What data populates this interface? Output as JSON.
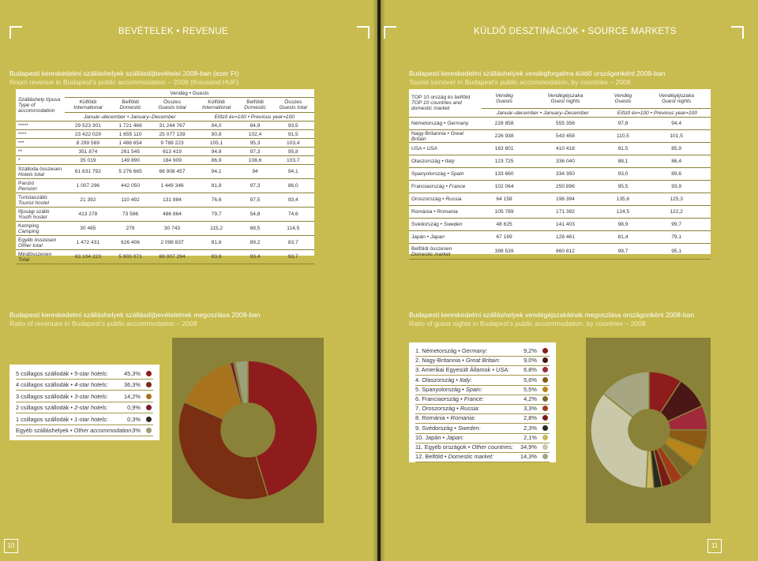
{
  "left": {
    "section_title": "BEVÉTELEK • REVENUE",
    "page_number": "10",
    "table1": {
      "caption_hu": "Budapesti kereskedelmi szálláshelyek szállásdíjbevételei 2008-ban (ezer Ft)",
      "caption_en": "Room revenue in Budapest's public accommodation – 2008 (thousand HUF)",
      "rowhead_hu": "Szálláshely típusa",
      "rowhead_en": "Type of accommodation",
      "group_label": "Vendég • Guests",
      "cols": [
        {
          "hu": "Külföldi",
          "en": "International"
        },
        {
          "hu": "Belföldi",
          "en": "Domestic"
        },
        {
          "hu": "Összes",
          "en": "Guests total"
        },
        {
          "hu": "Külföldi",
          "en": "International"
        },
        {
          "hu": "Belföldi",
          "en": "Domestic"
        },
        {
          "hu": "Összes",
          "en": "Guests total"
        }
      ],
      "period_left": "Január–december • January–December",
      "period_right": "Előző év=100 • Previous year=100",
      "rows": [
        {
          "hu": "*****",
          "en": "",
          "v": [
            "29 523 301",
            "1 721 466",
            "31 244 767",
            "94,0",
            "84,9",
            "93,5"
          ]
        },
        {
          "hu": "****",
          "en": "",
          "v": [
            "23 422 029",
            "1 655 110",
            "25 077 139",
            "90,8",
            "102,4",
            "91,5"
          ]
        },
        {
          "hu": "***",
          "en": "",
          "v": [
            "8 299 569",
            "1 488 654",
            "9 788 223",
            "105,1",
            "95,3",
            "103,4"
          ]
        },
        {
          "hu": "**",
          "en": "",
          "v": [
            "351 874",
            "261 545",
            "613 419",
            "94,8",
            "97,3",
            "95,8"
          ]
        },
        {
          "hu": "*",
          "en": "",
          "v": [
            "35 019",
            "149 890",
            "184 909",
            "86,9",
            "108,6",
            "103,7"
          ]
        },
        {
          "hu": "Szálloda összesen",
          "en": "Hotels total",
          "v": [
            "61 631 792",
            "5 276 665",
            "66 908 457",
            "94,1",
            "94",
            "94,1"
          ]
        },
        {
          "hu": "Panzió",
          "en": "Pension",
          "v": [
            "1 007 296",
            "442 050",
            "1 449 346",
            "81,8",
            "97,3",
            "86,0"
          ]
        },
        {
          "hu": "Turistaszálló",
          "en": "Tourist hostel",
          "v": [
            "21 392",
            "110 492",
            "131 884",
            "76,6",
            "97,5",
            "93,4"
          ]
        },
        {
          "hu": "Ifjúsági szálló",
          "en": "Youth hostel",
          "v": [
            "413 278",
            "73 586",
            "486 864",
            "79,7",
            "54,8",
            "74,6"
          ]
        },
        {
          "hu": "Kemping",
          "en": "Camping",
          "v": [
            "30 465",
            "278",
            "30 743",
            "115,2",
            "68,5",
            "114,5"
          ]
        },
        {
          "hu": "Egyéb összesen",
          "en": "Other total",
          "v": [
            "1 472 431",
            "626 406",
            "2 098 837",
            "81,6",
            "89,2",
            "83,7"
          ]
        },
        {
          "hu": "Mindösszesen",
          "en": "Total",
          "v": [
            "63 104 223",
            "5 903 071",
            "69 007 294",
            "93,8",
            "93,4",
            "93,7"
          ]
        }
      ]
    },
    "chart1": {
      "caption_hu": "Budapesti kereskedelmi szálláshelyek szállásdíjbevételeinek megoszlása 2008-ban",
      "caption_en": "Ratio of revenues in Budapest's public accommodation – 2008",
      "legend": [
        {
          "hu": "5 csillagos szállodák",
          "en": "5-star hotels:",
          "value": "45,3%",
          "color": "#8e1c1c"
        },
        {
          "hu": "4 csillagos szállodák",
          "en": "4-star hotels:",
          "value": "36,3%",
          "color": "#7a2e12"
        },
        {
          "hu": "3 csillagos szállodák",
          "en": "3-star hotels:",
          "value": "14,2%",
          "color": "#a8731c"
        },
        {
          "hu": "2 csillagos szállodák",
          "en": "2-star hotels:",
          "value": "0,9%",
          "color": "#7a1a32"
        },
        {
          "hu": "1 csillagos szállodák",
          "en": "1-star hotels:",
          "value": "0,3%",
          "color": "#2e2a20"
        },
        {
          "hu": "Egyéb szálláshelyek",
          "en": "Other accommodation:",
          "value": "3%",
          "color": "#9aa07a"
        }
      ]
    }
  },
  "right": {
    "section_title": "KÜLDŐ DESZTINÁCIÓK • SOURCE MARKETS",
    "page_number": "11",
    "table2": {
      "caption_hu": "Budapesti kereskedelmi szálláshelyek vendégforgalma küldő országonként 2008-ban",
      "caption_en": "Tourist turnover in Budapest's public accommodation, by countries – 2008",
      "rowhead_hu": "TOP 10 ország és belföld",
      "rowhead_en": "TOP 10 countries and domestic market",
      "cols": [
        {
          "hu": "Vendég",
          "en": "Guests"
        },
        {
          "hu": "Vendégéjszaka",
          "en": "Guest nights"
        },
        {
          "hu": "Vendég",
          "en": "Guests"
        },
        {
          "hu": "Vendégéjszaka",
          "en": "Guest nights"
        }
      ],
      "period_left": "Január–december • January–December",
      "period_right": "Előző év=100 • Previous year=100",
      "rows": [
        {
          "hu": "Németország",
          "en": "Germany",
          "v": [
            "228 858",
            "555 356",
            "97,8",
            "94,4"
          ]
        },
        {
          "hu": "Nagy-Britannia",
          "en": "Great Britain",
          "v": [
            "226 938",
            "543 458",
            "110,5",
            "101,5"
          ]
        },
        {
          "hu": "USA",
          "en": "USA",
          "v": [
            "163 801",
            "410 418",
            "91,5",
            "85,9"
          ]
        },
        {
          "hu": "Olaszország",
          "en": "Italy",
          "v": [
            "123 725",
            "336 040",
            "88,1",
            "86,4"
          ]
        },
        {
          "hu": "Spanyolország",
          "en": "Spain",
          "v": [
            "133 660",
            "334 350",
            "93,0",
            "89,6"
          ]
        },
        {
          "hu": "Franciaország",
          "en": "France",
          "v": [
            "102 064",
            "250 896",
            "95,5",
            "93,9"
          ]
        },
        {
          "hu": "Oroszország",
          "en": "Russia",
          "v": [
            "64 158",
            "196 394",
            "135,6",
            "125,3"
          ]
        },
        {
          "hu": "Románia",
          "en": "Romania",
          "v": [
            "105 789",
            "171 392",
            "124,5",
            "122,2"
          ]
        },
        {
          "hu": "Svédország",
          "en": "Sweden",
          "v": [
            "48 625",
            "141 403",
            "98,9",
            "99,7"
          ]
        },
        {
          "hu": "Japán",
          "en": "Japan",
          "v": [
            "67 169",
            "128 461",
            "81,4",
            "79,1"
          ]
        },
        {
          "hu": "Belföldi összesen",
          "en": "Domestic market",
          "v": [
            "398 539",
            "860 812",
            "99,7",
            "95,1"
          ]
        }
      ]
    },
    "chart2": {
      "caption_hu": "Budapesti kereskedelmi szálláshelyek vendégéjszakáinak megoszlása országonként 2008-ban",
      "caption_en": "Ratio of guest nights in Budapest's public accommodation, by countries – 2008",
      "legend": [
        {
          "hu": "1. Németország",
          "en": "Germany:",
          "value": "9,2%",
          "color": "#8e1c1c"
        },
        {
          "hu": "2. Nagy-Britannia",
          "en": "Great Britain:",
          "value": "9,0%",
          "color": "#4a1616"
        },
        {
          "hu": "3. Amerikai Egyesült Államok",
          "en": "USA:",
          "value": "6,8%",
          "color": "#a02a3a"
        },
        {
          "hu": "4. Olaszország",
          "en": "Italy:",
          "value": "5,6%",
          "color": "#8a5a14"
        },
        {
          "hu": "5. Spanyolország",
          "en": "Spain:",
          "value": "5,5%",
          "color": "#b8841c"
        },
        {
          "hu": "6. Franciaország",
          "en": "France:",
          "value": "4,2%",
          "color": "#7a6a2a"
        },
        {
          "hu": "7. Oroszország",
          "en": "Russia:",
          "value": "3,3%",
          "color": "#a03a1a"
        },
        {
          "hu": "8. Románia",
          "en": "Romania:",
          "value": "2,8%",
          "color": "#7a1a1a"
        },
        {
          "hu": "9. Svédország",
          "en": "Sweden:",
          "value": "2,3%",
          "color": "#2a2a22"
        },
        {
          "hu": "10. Japán",
          "en": "Japan:",
          "value": "2,1%",
          "color": "#c8b860"
        },
        {
          "hu": "11. Egyéb országok",
          "en": "Other countries:",
          "value": "34,9%",
          "color": "#c9c8a8"
        },
        {
          "hu": "12. Belföld",
          "en": "Domestic market:",
          "value": "14,3%",
          "color": "#a6a682"
        }
      ]
    }
  }
}
